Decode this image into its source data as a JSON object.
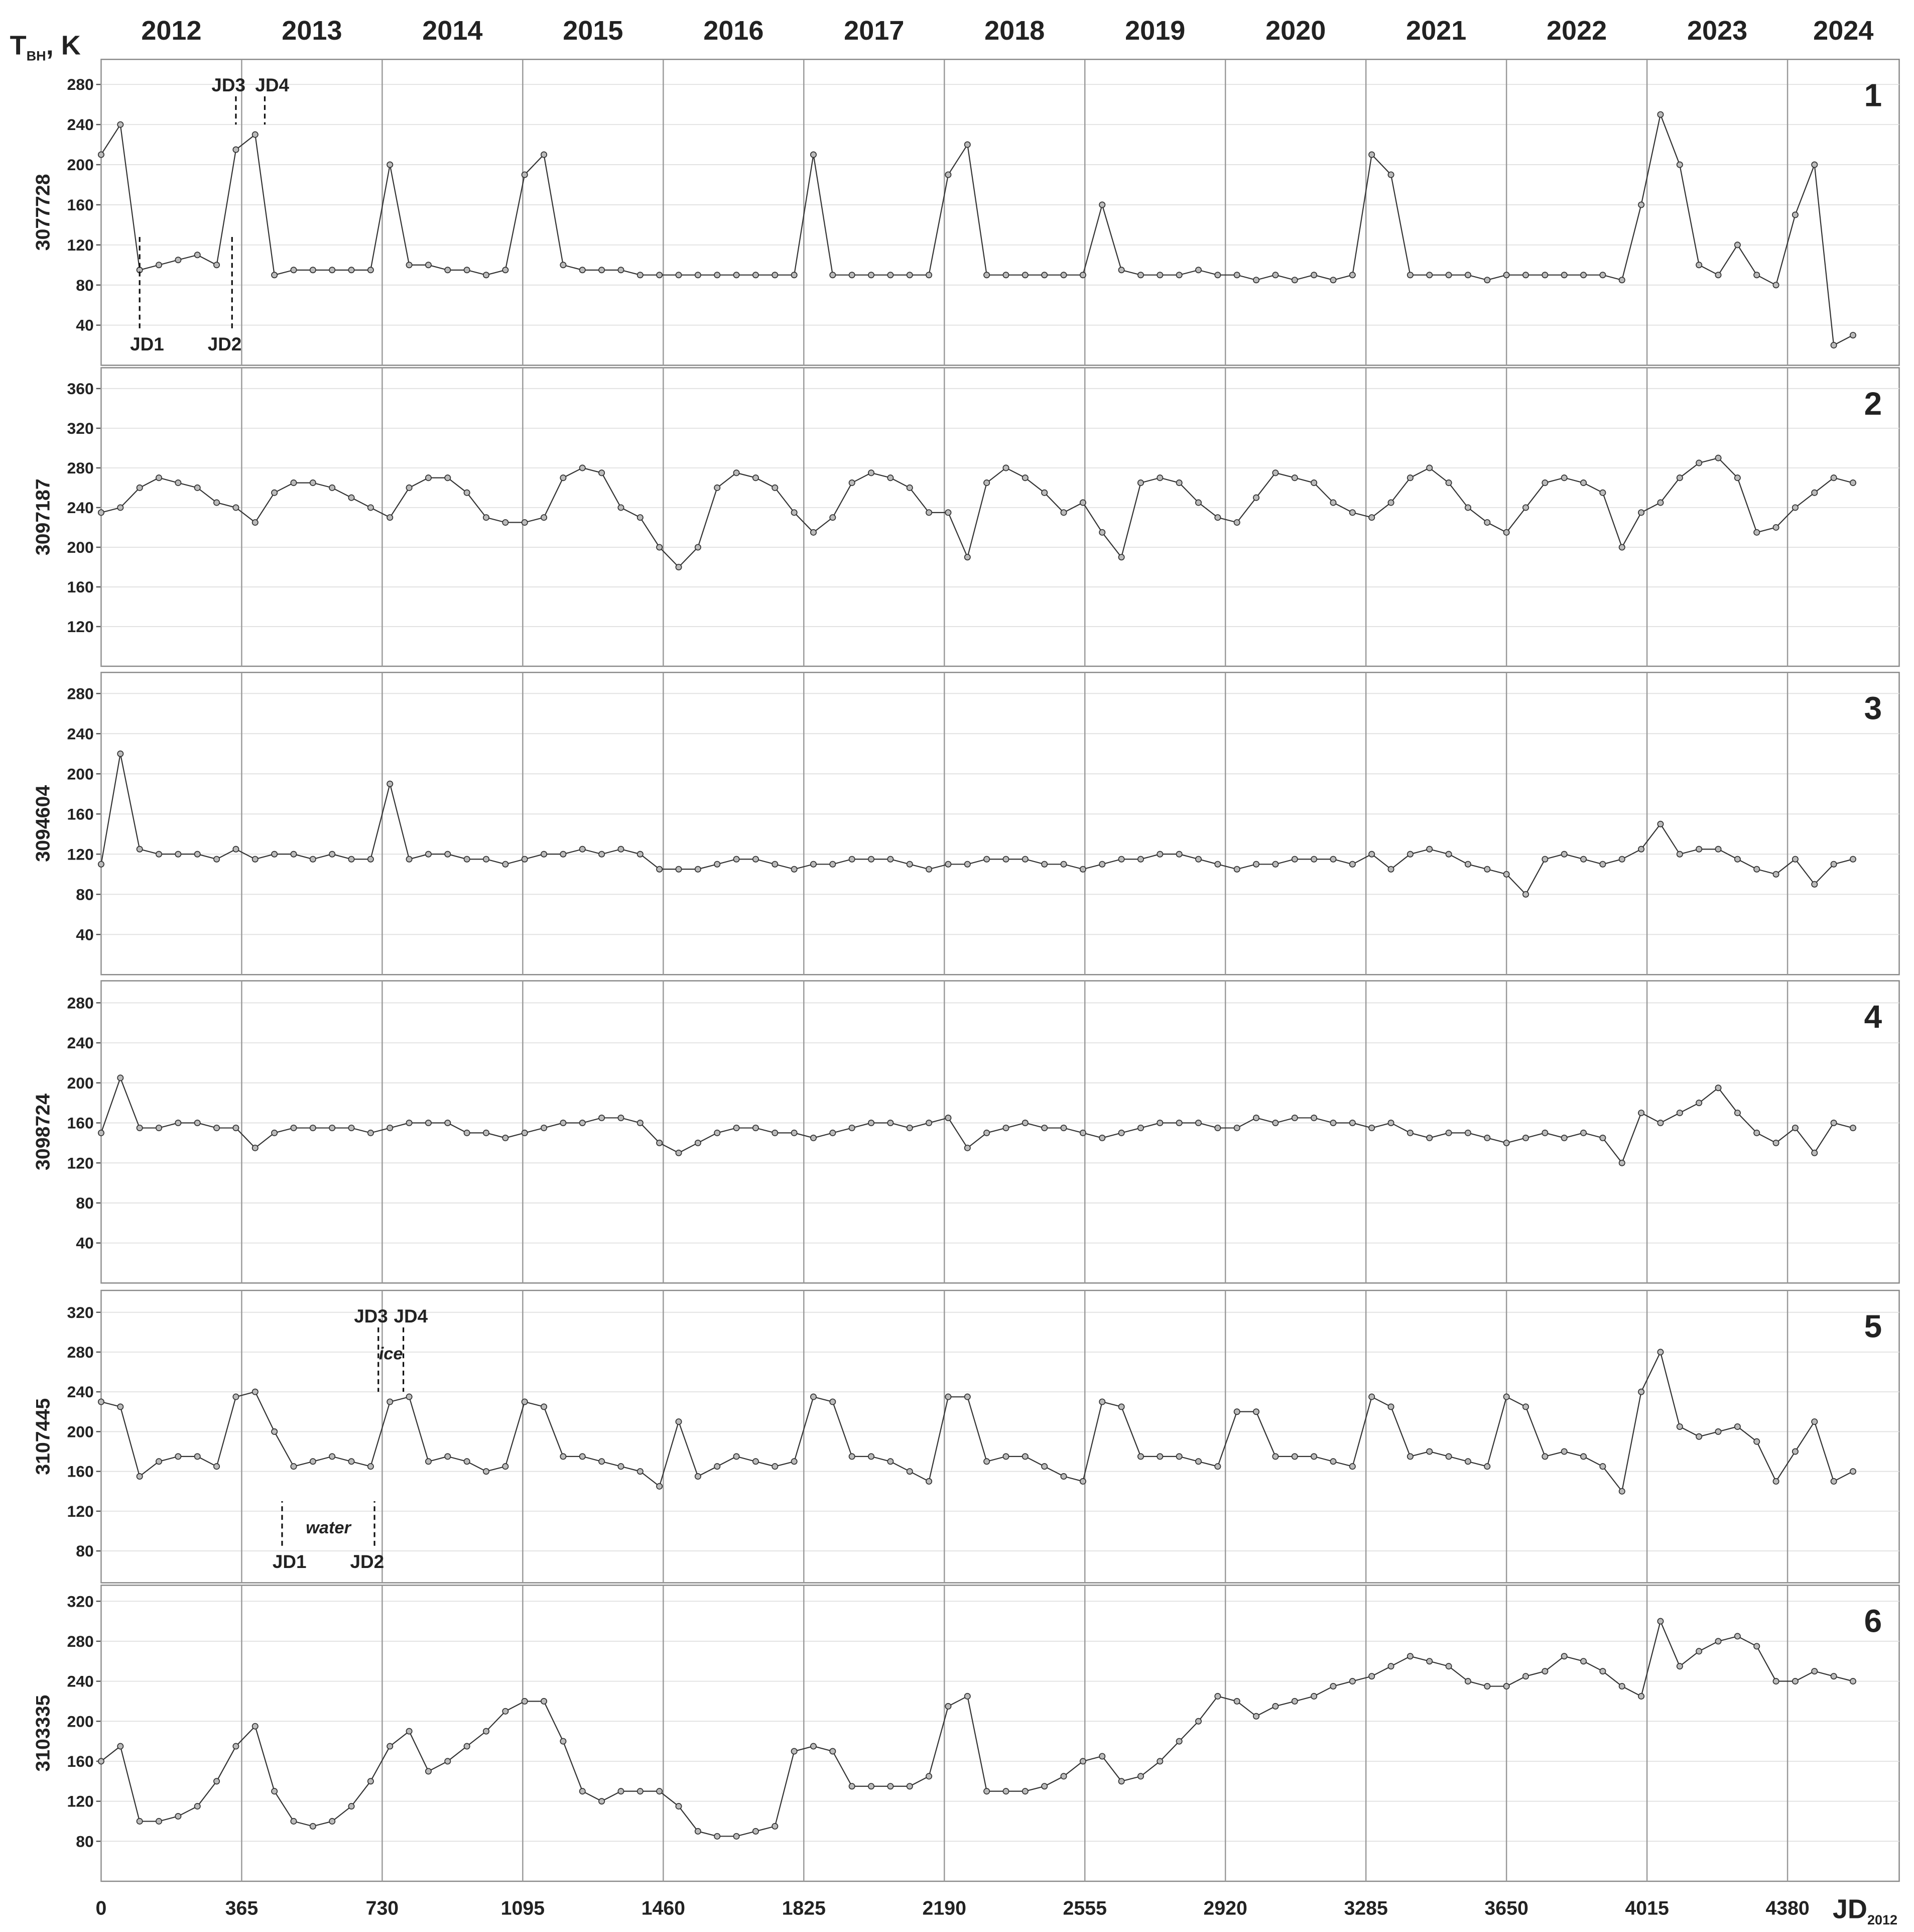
{
  "chart_data": [
    {
      "type": "line",
      "y_axis_title": "T",
      "y_axis_title_sub": "BH",
      "y_axis_title_unit": ", K",
      "years": [
        "2012",
        "2013",
        "2014",
        "2015",
        "2016",
        "2017",
        "2018",
        "2019",
        "2020",
        "2021",
        "2022",
        "2023",
        "2024"
      ],
      "label": "1",
      "station": "3077728",
      "xlim": [
        0,
        4670
      ],
      "ylim": [
        0,
        305
      ],
      "yticks": [
        40,
        80,
        120,
        160,
        200,
        240,
        280
      ],
      "grid": true,
      "color": "#333333",
      "marker_color": "#bbbbbb",
      "annotations": [
        {
          "text": "JD1",
          "x": 100
        },
        {
          "text": "JD2",
          "x": 340
        },
        {
          "text": "JD3",
          "x": 350
        },
        {
          "text": "JD4",
          "x": 425
        }
      ],
      "x": [
        0,
        50,
        100,
        150,
        200,
        250,
        300,
        350,
        400,
        450,
        500,
        550,
        600,
        650,
        700,
        750,
        800,
        850,
        900,
        950,
        1000,
        1050,
        1100,
        1150,
        1200,
        1250,
        1300,
        1350,
        1400,
        1450,
        1500,
        1550,
        1600,
        1650,
        1700,
        1750,
        1800,
        1850,
        1900,
        1950,
        2000,
        2050,
        2100,
        2150,
        2200,
        2250,
        2300,
        2350,
        2400,
        2450,
        2500,
        2550,
        2600,
        2650,
        2700,
        2750,
        2800,
        2850,
        2900,
        2950,
        3000,
        3050,
        3100,
        3150,
        3200,
        3250,
        3300,
        3350,
        3400,
        3450,
        3500,
        3550,
        3600,
        3650,
        3700,
        3750,
        3800,
        3850,
        3900,
        3950,
        4000,
        4050,
        4100,
        4150,
        4200,
        4250,
        4300,
        4350,
        4400,
        4450,
        4500,
        4550
      ],
      "values": [
        210,
        240,
        95,
        100,
        105,
        110,
        100,
        215,
        230,
        90,
        95,
        95,
        95,
        95,
        95,
        200,
        100,
        100,
        95,
        95,
        90,
        95,
        190,
        210,
        100,
        95,
        95,
        95,
        90,
        90,
        90,
        90,
        90,
        90,
        90,
        90,
        90,
        210,
        90,
        90,
        90,
        90,
        90,
        90,
        190,
        220,
        90,
        90,
        90,
        90,
        90,
        90,
        160,
        95,
        90,
        90,
        90,
        95,
        90,
        90,
        85,
        90,
        85,
        90,
        85,
        90,
        210,
        190,
        90,
        90,
        90,
        90,
        85,
        90,
        90,
        90,
        90,
        90,
        90,
        85,
        160,
        250,
        200,
        100,
        90,
        120,
        90,
        80,
        150,
        200,
        20,
        30
      ]
    },
    {
      "type": "line",
      "label": "2",
      "station": "3097187",
      "xlim": [
        0,
        4670
      ],
      "ylim": [
        80,
        381
      ],
      "yticks": [
        120,
        160,
        200,
        240,
        280,
        320,
        360
      ],
      "grid": true,
      "color": "#333333",
      "marker_color": "#bbbbbb",
      "x": [
        0,
        50,
        100,
        150,
        200,
        250,
        300,
        350,
        400,
        450,
        500,
        550,
        600,
        650,
        700,
        750,
        800,
        850,
        900,
        950,
        1000,
        1050,
        1100,
        1150,
        1200,
        1250,
        1300,
        1350,
        1400,
        1450,
        1500,
        1550,
        1600,
        1650,
        1700,
        1750,
        1800,
        1850,
        1900,
        1950,
        2000,
        2050,
        2100,
        2150,
        2200,
        2250,
        2300,
        2350,
        2400,
        2450,
        2500,
        2550,
        2600,
        2650,
        2700,
        2750,
        2800,
        2850,
        2900,
        2950,
        3000,
        3050,
        3100,
        3150,
        3200,
        3250,
        3300,
        3350,
        3400,
        3450,
        3500,
        3550,
        3600,
        3650,
        3700,
        3750,
        3800,
        3850,
        3900,
        3950,
        4000,
        4050,
        4100,
        4150,
        4200,
        4250,
        4300,
        4350,
        4400,
        4450,
        4500,
        4550
      ],
      "values": [
        235,
        240,
        260,
        270,
        265,
        260,
        245,
        240,
        225,
        255,
        265,
        265,
        260,
        250,
        240,
        230,
        260,
        270,
        270,
        255,
        230,
        225,
        225,
        230,
        270,
        280,
        275,
        240,
        230,
        200,
        180,
        200,
        260,
        275,
        270,
        260,
        235,
        215,
        230,
        265,
        275,
        270,
        260,
        235,
        235,
        190,
        265,
        280,
        270,
        255,
        235,
        245,
        215,
        190,
        265,
        270,
        265,
        245,
        230,
        225,
        250,
        275,
        270,
        265,
        245,
        235,
        230,
        245,
        270,
        280,
        265,
        240,
        225,
        215,
        240,
        265,
        270,
        265,
        255,
        200,
        235,
        245,
        270,
        285,
        290,
        270,
        215,
        220,
        240,
        255,
        270,
        265
      ]
    },
    {
      "type": "line",
      "label": "3",
      "station": "3094604",
      "xlim": [
        0,
        4670
      ],
      "ylim": [
        0,
        301
      ],
      "yticks": [
        40,
        80,
        120,
        160,
        200,
        240,
        280
      ],
      "grid": true,
      "color": "#333333",
      "marker_color": "#bbbbbb",
      "x": [
        0,
        50,
        100,
        150,
        200,
        250,
        300,
        350,
        400,
        450,
        500,
        550,
        600,
        650,
        700,
        750,
        800,
        850,
        900,
        950,
        1000,
        1050,
        1100,
        1150,
        1200,
        1250,
        1300,
        1350,
        1400,
        1450,
        1500,
        1550,
        1600,
        1650,
        1700,
        1750,
        1800,
        1850,
        1900,
        1950,
        2000,
        2050,
        2100,
        2150,
        2200,
        2250,
        2300,
        2350,
        2400,
        2450,
        2500,
        2550,
        2600,
        2650,
        2700,
        2750,
        2800,
        2850,
        2900,
        2950,
        3000,
        3050,
        3100,
        3150,
        3200,
        3250,
        3300,
        3350,
        3400,
        3450,
        3500,
        3550,
        3600,
        3650,
        3700,
        3750,
        3800,
        3850,
        3900,
        3950,
        4000,
        4050,
        4100,
        4150,
        4200,
        4250,
        4300,
        4350,
        4400,
        4450,
        4500,
        4550
      ],
      "values": [
        110,
        220,
        125,
        120,
        120,
        120,
        115,
        125,
        115,
        120,
        120,
        115,
        120,
        115,
        115,
        190,
        115,
        120,
        120,
        115,
        115,
        110,
        115,
        120,
        120,
        125,
        120,
        125,
        120,
        105,
        105,
        105,
        110,
        115,
        115,
        110,
        105,
        110,
        110,
        115,
        115,
        115,
        110,
        105,
        110,
        110,
        115,
        115,
        115,
        110,
        110,
        105,
        110,
        115,
        115,
        120,
        120,
        115,
        110,
        105,
        110,
        110,
        115,
        115,
        115,
        110,
        120,
        105,
        120,
        125,
        120,
        110,
        105,
        100,
        80,
        115,
        120,
        115,
        110,
        115,
        125,
        150,
        120,
        125,
        125,
        115,
        105,
        100,
        115,
        90,
        110,
        115
      ]
    },
    {
      "type": "line",
      "label": "4",
      "station": "3098724",
      "xlim": [
        0,
        4670
      ],
      "ylim": [
        0,
        302
      ],
      "yticks": [
        40,
        80,
        120,
        160,
        200,
        240,
        280
      ],
      "grid": true,
      "color": "#333333",
      "marker_color": "#bbbbbb",
      "x": [
        0,
        50,
        100,
        150,
        200,
        250,
        300,
        350,
        400,
        450,
        500,
        550,
        600,
        650,
        700,
        750,
        800,
        850,
        900,
        950,
        1000,
        1050,
        1100,
        1150,
        1200,
        1250,
        1300,
        1350,
        1400,
        1450,
        1500,
        1550,
        1600,
        1650,
        1700,
        1750,
        1800,
        1850,
        1900,
        1950,
        2000,
        2050,
        2100,
        2150,
        2200,
        2250,
        2300,
        2350,
        2400,
        2450,
        2500,
        2550,
        2600,
        2650,
        2700,
        2750,
        2800,
        2850,
        2900,
        2950,
        3000,
        3050,
        3100,
        3150,
        3200,
        3250,
        3300,
        3350,
        3400,
        3450,
        3500,
        3550,
        3600,
        3650,
        3700,
        3750,
        3800,
        3850,
        3900,
        3950,
        4000,
        4050,
        4100,
        4150,
        4200,
        4250,
        4300,
        4350,
        4400,
        4450,
        4500,
        4550
      ],
      "values": [
        150,
        205,
        155,
        155,
        160,
        160,
        155,
        155,
        135,
        150,
        155,
        155,
        155,
        155,
        150,
        155,
        160,
        160,
        160,
        150,
        150,
        145,
        150,
        155,
        160,
        160,
        165,
        165,
        160,
        140,
        130,
        140,
        150,
        155,
        155,
        150,
        150,
        145,
        150,
        155,
        160,
        160,
        155,
        160,
        165,
        135,
        150,
        155,
        160,
        155,
        155,
        150,
        145,
        150,
        155,
        160,
        160,
        160,
        155,
        155,
        165,
        160,
        165,
        165,
        160,
        160,
        155,
        160,
        150,
        145,
        150,
        150,
        145,
        140,
        145,
        150,
        145,
        150,
        145,
        120,
        170,
        160,
        170,
        180,
        195,
        170,
        150,
        140,
        155,
        130,
        160,
        155
      ]
    },
    {
      "type": "line",
      "label": "5",
      "station": "3107445",
      "xlim": [
        0,
        4670
      ],
      "ylim": [
        48,
        342
      ],
      "yticks": [
        80,
        120,
        160,
        200,
        240,
        280,
        320
      ],
      "grid": true,
      "color": "#333333",
      "marker_color": "#bbbbbb",
      "annotations": [
        {
          "text": "JD1",
          "x": 470
        },
        {
          "text": "JD2",
          "x": 710
        },
        {
          "text": "JD3",
          "x": 720
        },
        {
          "text": "JD4",
          "x": 785
        }
      ],
      "ice_label": "ice",
      "water_label": "water",
      "x": [
        0,
        50,
        100,
        150,
        200,
        250,
        300,
        350,
        400,
        450,
        500,
        550,
        600,
        650,
        700,
        750,
        800,
        850,
        900,
        950,
        1000,
        1050,
        1100,
        1150,
        1200,
        1250,
        1300,
        1350,
        1400,
        1450,
        1500,
        1550,
        1600,
        1650,
        1700,
        1750,
        1800,
        1850,
        1900,
        1950,
        2000,
        2050,
        2100,
        2150,
        2200,
        2250,
        2300,
        2350,
        2400,
        2450,
        2500,
        2550,
        2600,
        2650,
        2700,
        2750,
        2800,
        2850,
        2900,
        2950,
        3000,
        3050,
        3100,
        3150,
        3200,
        3250,
        3300,
        3350,
        3400,
        3450,
        3500,
        3550,
        3600,
        3650,
        3700,
        3750,
        3800,
        3850,
        3900,
        3950,
        4000,
        4050,
        4100,
        4150,
        4200,
        4250,
        4300,
        4350,
        4400,
        4450,
        4500,
        4550
      ],
      "values": [
        230,
        225,
        155,
        170,
        175,
        175,
        165,
        235,
        240,
        200,
        165,
        170,
        175,
        170,
        165,
        230,
        235,
        170,
        175,
        170,
        160,
        165,
        230,
        225,
        175,
        175,
        170,
        165,
        160,
        145,
        210,
        155,
        165,
        175,
        170,
        165,
        170,
        235,
        230,
        175,
        175,
        170,
        160,
        150,
        235,
        235,
        170,
        175,
        175,
        165,
        155,
        150,
        230,
        225,
        175,
        175,
        175,
        170,
        165,
        220,
        220,
        175,
        175,
        175,
        170,
        165,
        235,
        225,
        175,
        180,
        175,
        170,
        165,
        235,
        225,
        175,
        180,
        175,
        165,
        140,
        240,
        280,
        205,
        195,
        200,
        205,
        190,
        150,
        180,
        210,
        150,
        160
      ]
    },
    {
      "type": "line",
      "label": "6",
      "station": "3103335",
      "xlim": [
        0,
        4670
      ],
      "ylim": [
        40,
        336
      ],
      "yticks": [
        80,
        120,
        160,
        200,
        240,
        280,
        320
      ],
      "grid": true,
      "color": "#333333",
      "marker_color": "#bbbbbb",
      "xticks": [
        0,
        365,
        730,
        1095,
        1460,
        1825,
        2190,
        2555,
        2920,
        3285,
        3650,
        4015,
        4380
      ],
      "x_axis_title": "JD",
      "x_axis_title_sub": "2012",
      "x": [
        0,
        50,
        100,
        150,
        200,
        250,
        300,
        350,
        400,
        450,
        500,
        550,
        600,
        650,
        700,
        750,
        800,
        850,
        900,
        950,
        1000,
        1050,
        1100,
        1150,
        1200,
        1250,
        1300,
        1350,
        1400,
        1450,
        1500,
        1550,
        1600,
        1650,
        1700,
        1750,
        1800,
        1850,
        1900,
        1950,
        2000,
        2050,
        2100,
        2150,
        2200,
        2250,
        2300,
        2350,
        2400,
        2450,
        2500,
        2550,
        2600,
        2650,
        2700,
        2750,
        2800,
        2850,
        2900,
        2950,
        3000,
        3050,
        3100,
        3150,
        3200,
        3250,
        3300,
        3350,
        3400,
        3450,
        3500,
        3550,
        3600,
        3650,
        3700,
        3750,
        3800,
        3850,
        3900,
        3950,
        4000,
        4050,
        4100,
        4150,
        4200,
        4250,
        4300,
        4350,
        4400,
        4450,
        4500,
        4550
      ],
      "values": [
        160,
        175,
        100,
        100,
        105,
        115,
        140,
        175,
        195,
        130,
        100,
        95,
        100,
        115,
        140,
        175,
        190,
        150,
        160,
        175,
        190,
        210,
        220,
        220,
        180,
        130,
        120,
        130,
        130,
        130,
        115,
        90,
        85,
        85,
        90,
        95,
        170,
        175,
        170,
        135,
        135,
        135,
        135,
        145,
        215,
        225,
        130,
        130,
        130,
        135,
        145,
        160,
        165,
        140,
        145,
        160,
        180,
        200,
        225,
        220,
        205,
        215,
        220,
        225,
        235,
        240,
        245,
        255,
        265,
        260,
        255,
        240,
        235,
        235,
        245,
        250,
        265,
        260,
        250,
        235,
        225,
        300,
        255,
        270,
        280,
        285,
        275,
        240,
        240,
        250,
        245,
        240
      ]
    }
  ]
}
